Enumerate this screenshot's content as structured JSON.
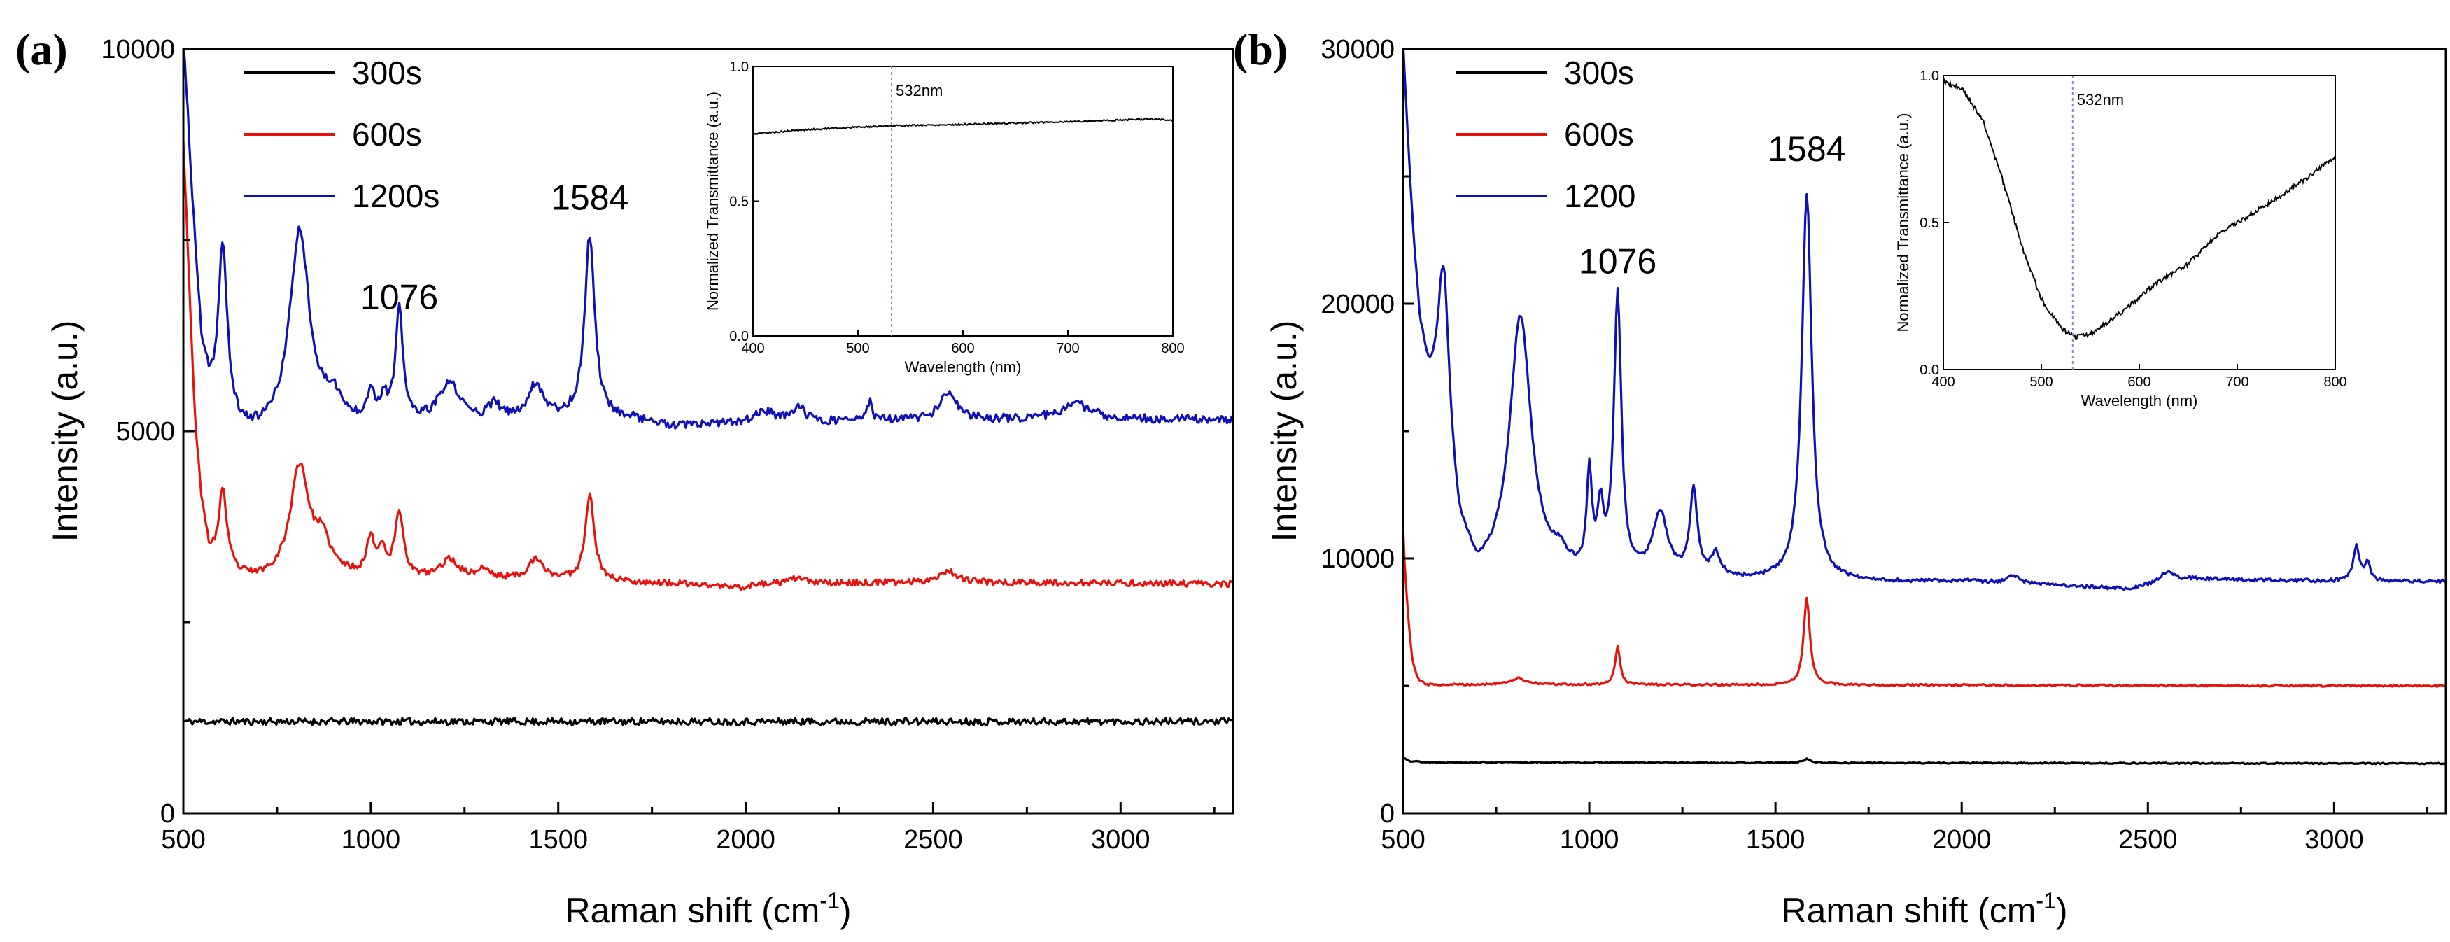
{
  "chart_data": [
    {
      "type": "line",
      "panel_label": "(a)",
      "xlabel": "Raman shift (cm",
      "xlabel_sup": "-1",
      "xlabel_close": ")",
      "ylabel": "Intensity (a.u.)",
      "xlim": [
        500,
        3300
      ],
      "ylim": [
        0,
        10000
      ],
      "xticks": [
        500,
        1000,
        1500,
        2000,
        2500,
        3000
      ],
      "yticks": [
        0,
        5000,
        10000
      ],
      "legend": [
        {
          "label": "300s",
          "color": "#000000"
        },
        {
          "label": "600s",
          "color": "#e8120c"
        },
        {
          "label": "1200s",
          "color": "#1010b8"
        }
      ],
      "annotations": [
        {
          "text": "1076",
          "x": 1076,
          "y": 6600
        },
        {
          "text": "1584",
          "x": 1584,
          "y": 7900
        }
      ],
      "series": [
        {
          "name": "300s",
          "color": "#000000",
          "baseline": 1150,
          "noise": 45,
          "seed": 11,
          "points": [
            [
              500,
              1200
            ],
            [
              3300,
              1200
            ]
          ],
          "peaks": []
        },
        {
          "name": "600s",
          "color": "#e8120c",
          "baseline": 3000,
          "noise": 40,
          "seed": 23,
          "points": [
            [
              500,
              8800
            ],
            [
              515,
              7000
            ],
            [
              530,
              5200
            ],
            [
              550,
              4000
            ],
            [
              570,
              3400
            ],
            [
              590,
              3300
            ],
            [
              650,
              3100
            ],
            [
              700,
              3050
            ],
            [
              900,
              3100
            ],
            [
              1100,
              3050
            ],
            [
              1500,
              3050
            ],
            [
              1800,
              3000
            ],
            [
              1900,
              2980
            ],
            [
              1980,
              2950
            ],
            [
              2050,
              3000
            ],
            [
              2500,
              3020
            ],
            [
              3300,
              3000
            ]
          ],
          "peaks": [
            [
              605,
              1000,
              12
            ],
            [
              810,
              1450,
              30
            ],
            [
              870,
              400,
              25
            ],
            [
              1000,
              500,
              12
            ],
            [
              1030,
              350,
              10
            ],
            [
              1076,
              850,
              14
            ],
            [
              1210,
              250,
              30
            ],
            [
              1300,
              120,
              20
            ],
            [
              1440,
              250,
              25
            ],
            [
              1584,
              1150,
              14
            ],
            [
              2140,
              80,
              20
            ],
            [
              2540,
              150,
              30
            ]
          ]
        },
        {
          "name": "1200s",
          "color": "#1010b8",
          "baseline": 5050,
          "noise": 55,
          "seed": 37,
          "points": [
            [
              500,
              10000
            ],
            [
              510,
              9300
            ],
            [
              520,
              8300
            ],
            [
              535,
              7100
            ],
            [
              550,
              6000
            ],
            [
              570,
              5500
            ],
            [
              590,
              5300
            ],
            [
              650,
              5000
            ],
            [
              700,
              4950
            ],
            [
              900,
              5050
            ],
            [
              1300,
              5100
            ],
            [
              1500,
              5150
            ],
            [
              1700,
              5150
            ],
            [
              1800,
              5050
            ],
            [
              2000,
              5100
            ],
            [
              2500,
              5150
            ],
            [
              3300,
              5150
            ]
          ],
          "peaks": [
            [
              605,
              2200,
              14
            ],
            [
              810,
              2600,
              32
            ],
            [
              900,
              300,
              25
            ],
            [
              1000,
              400,
              12
            ],
            [
              1035,
              300,
              10
            ],
            [
              1076,
              1450,
              12
            ],
            [
              1210,
              500,
              35
            ],
            [
              1330,
              200,
              20
            ],
            [
              1440,
              450,
              25
            ],
            [
              1584,
              2400,
              16
            ],
            [
              2050,
              150,
              30
            ],
            [
              2140,
              200,
              20
            ],
            [
              2330,
              250,
              8
            ],
            [
              2540,
              350,
              25
            ],
            [
              2880,
              200,
              50
            ]
          ]
        }
      ],
      "inset": {
        "xlabel": "Wavelength (nm)",
        "ylabel": "Normalized Transmittance (a.u.)",
        "xlim": [
          400,
          800
        ],
        "ylim": [
          0.0,
          1.0
        ],
        "xticks": [
          400,
          500,
          600,
          700,
          800
        ],
        "yticks": [
          0.0,
          0.5,
          1.0
        ],
        "marker_x": 532,
        "marker_label": "532nm",
        "points": [
          [
            400,
            0.75
          ],
          [
            450,
            0.765
          ],
          [
            500,
            0.775
          ],
          [
            532,
            0.78
          ],
          [
            600,
            0.785
          ],
          [
            700,
            0.795
          ],
          [
            780,
            0.805
          ],
          [
            800,
            0.8
          ]
        ],
        "noise": 0.003,
        "seed": 5
      }
    },
    {
      "type": "line",
      "panel_label": "(b)",
      "xlabel": "Raman shift (cm",
      "xlabel_sup": "-1",
      "xlabel_close": ")",
      "ylabel": "Intensity (a.u.)",
      "xlim": [
        500,
        3300
      ],
      "ylim": [
        0,
        30000
      ],
      "xticks": [
        500,
        1000,
        1500,
        2000,
        2500,
        3000
      ],
      "yticks": [
        0,
        10000,
        20000,
        30000
      ],
      "legend": [
        {
          "label": "300s",
          "color": "#000000"
        },
        {
          "label": "600s",
          "color": "#e8120c"
        },
        {
          "label": "1200",
          "color": "#1010b8"
        }
      ],
      "annotations": [
        {
          "text": "1076",
          "x": 1076,
          "y": 21200
        },
        {
          "text": "1584",
          "x": 1584,
          "y": 25600
        }
      ],
      "series": [
        {
          "name": "300s",
          "color": "#000000",
          "baseline": 1950,
          "noise": 25,
          "seed": 13,
          "points": [
            [
              500,
              2200
            ],
            [
              520,
              2050
            ],
            [
              560,
              2000
            ],
            [
              1500,
              1980
            ],
            [
              3300,
              1950
            ]
          ],
          "peaks": [
            [
              1584,
              150,
              12
            ]
          ]
        },
        {
          "name": "600s",
          "color": "#e8120c",
          "baseline": 4950,
          "noise": 40,
          "seed": 29,
          "points": [
            [
              500,
              11300
            ],
            [
              505,
              9500
            ],
            [
              515,
              7500
            ],
            [
              525,
              6000
            ],
            [
              540,
              5300
            ],
            [
              560,
              5050
            ],
            [
              3300,
              5000
            ]
          ],
          "peaks": [
            [
              810,
              250,
              25
            ],
            [
              1076,
              1500,
              8
            ],
            [
              1584,
              3400,
              10
            ]
          ]
        },
        {
          "name": "1200",
          "color": "#1010b8",
          "baseline": 9000,
          "noise": 70,
          "seed": 41,
          "points": [
            [
              500,
              30000
            ],
            [
              510,
              27000
            ],
            [
              525,
              23000
            ],
            [
              545,
              19000
            ],
            [
              570,
              16800
            ],
            [
              600,
              16400
            ],
            [
              650,
              11000
            ],
            [
              700,
              9200
            ],
            [
              900,
              9100
            ],
            [
              1400,
              9100
            ],
            [
              1800,
              9050
            ],
            [
              2000,
              9100
            ],
            [
              2450,
              8800
            ],
            [
              2600,
              9200
            ],
            [
              3000,
              9100
            ],
            [
              3300,
              9100
            ]
          ],
          "peaks": [
            [
              610,
              5800,
              16
            ],
            [
              815,
              10300,
              35
            ],
            [
              920,
              600,
              25
            ],
            [
              1000,
              3900,
              8
            ],
            [
              1030,
              2300,
              10
            ],
            [
              1076,
              11000,
              12
            ],
            [
              1190,
              2500,
              25
            ],
            [
              1280,
              3400,
              12
            ],
            [
              1340,
              900,
              15
            ],
            [
              1584,
              15200,
              16
            ],
            [
              2140,
              300,
              20
            ],
            [
              2550,
              400,
              20
            ],
            [
              3060,
              1400,
              10
            ],
            [
              3090,
              700,
              8
            ]
          ]
        }
      ],
      "inset": {
        "xlabel": "Wavelength (nm)",
        "ylabel": "Normalized Transmittance (a.u.)",
        "xlim": [
          400,
          800
        ],
        "ylim": [
          0.0,
          1.0
        ],
        "xticks": [
          400,
          500,
          600,
          700,
          800
        ],
        "yticks": [
          0.0,
          0.5,
          1.0
        ],
        "marker_x": 532,
        "marker_label": "532nm",
        "points": [
          [
            400,
            0.98
          ],
          [
            420,
            0.95
          ],
          [
            440,
            0.85
          ],
          [
            460,
            0.65
          ],
          [
            480,
            0.42
          ],
          [
            500,
            0.24
          ],
          [
            520,
            0.14
          ],
          [
            535,
            0.11
          ],
          [
            550,
            0.12
          ],
          [
            580,
            0.19
          ],
          [
            620,
            0.3
          ],
          [
            650,
            0.36
          ],
          [
            680,
            0.46
          ],
          [
            710,
            0.52
          ],
          [
            740,
            0.58
          ],
          [
            770,
            0.65
          ],
          [
            800,
            0.72
          ]
        ],
        "noise": 0.008,
        "seed": 9
      }
    }
  ]
}
